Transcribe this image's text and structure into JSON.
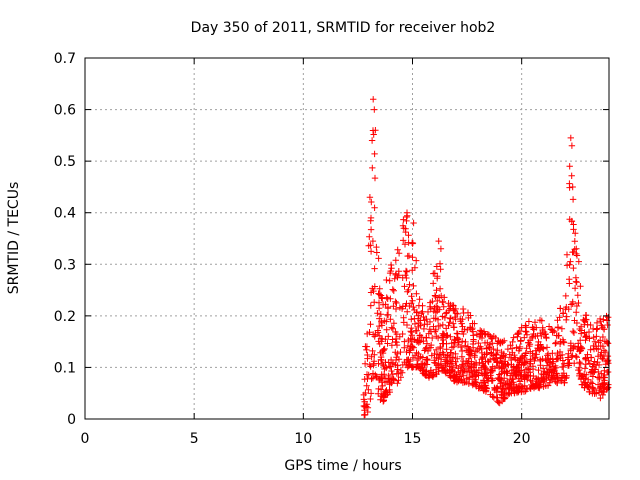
{
  "chart_data": {
    "type": "scatter",
    "title": "Day 350 of 2011, SRMTID for receiver hob2",
    "xlabel": "GPS time / hours",
    "ylabel": "SRMTID / TECUs",
    "xlim": [
      0,
      24
    ],
    "ylim": [
      0,
      0.7
    ],
    "x_ticks": [
      0,
      5,
      10,
      15,
      20
    ],
    "x_tick_labels": [
      "0",
      "5",
      "10",
      "15",
      "20"
    ],
    "y_ticks": [
      0,
      0.1,
      0.2,
      0.3,
      0.4,
      0.5,
      0.6,
      0.7
    ],
    "y_tick_labels": [
      "0",
      "0.1",
      "0.2",
      "0.3",
      "0.4",
      "0.5",
      "0.6",
      "0.7"
    ],
    "grid": true,
    "marker": "+",
    "color": "#ff0000",
    "point_count_approx": 1500,
    "series": [
      {
        "name": "SRMTID",
        "description": "Dense scatter of SRMTID values; no data before ~12.7 h, sharp onset near 12.8-13.3 h with peaks to ~0.62, secondary peak ~0.40 near 14.7 h, ~0.34 near 16.2 h, broad band 0.05-0.20 from 16 to 22 h, peak ~0.54 near 22.3 h, then 0.05-0.20 to 24 h.",
        "profile": [
          {
            "x": 12.75,
            "low": 0.0,
            "high": 0.02
          },
          {
            "x": 12.85,
            "low": 0.0,
            "high": 0.15
          },
          {
            "x": 13.0,
            "low": 0.02,
            "high": 0.35
          },
          {
            "x": 13.15,
            "low": 0.05,
            "high": 0.54
          },
          {
            "x": 13.25,
            "low": 0.1,
            "high": 0.62
          },
          {
            "x": 13.4,
            "low": 0.05,
            "high": 0.35
          },
          {
            "x": 13.6,
            "low": 0.03,
            "high": 0.24
          },
          {
            "x": 13.9,
            "low": 0.05,
            "high": 0.3
          },
          {
            "x": 14.2,
            "low": 0.06,
            "high": 0.3
          },
          {
            "x": 14.5,
            "low": 0.08,
            "high": 0.38
          },
          {
            "x": 14.75,
            "low": 0.1,
            "high": 0.4
          },
          {
            "x": 15.0,
            "low": 0.1,
            "high": 0.37
          },
          {
            "x": 15.3,
            "low": 0.1,
            "high": 0.26
          },
          {
            "x": 15.6,
            "low": 0.08,
            "high": 0.2
          },
          {
            "x": 15.9,
            "low": 0.08,
            "high": 0.27
          },
          {
            "x": 16.2,
            "low": 0.09,
            "high": 0.34
          },
          {
            "x": 16.5,
            "low": 0.09,
            "high": 0.24
          },
          {
            "x": 17.0,
            "low": 0.07,
            "high": 0.22
          },
          {
            "x": 17.5,
            "low": 0.07,
            "high": 0.21
          },
          {
            "x": 18.0,
            "low": 0.06,
            "high": 0.18
          },
          {
            "x": 18.5,
            "low": 0.05,
            "high": 0.17
          },
          {
            "x": 19.0,
            "low": 0.03,
            "high": 0.16
          },
          {
            "x": 19.5,
            "low": 0.05,
            "high": 0.15
          },
          {
            "x": 20.0,
            "low": 0.05,
            "high": 0.18
          },
          {
            "x": 20.5,
            "low": 0.06,
            "high": 0.2
          },
          {
            "x": 21.0,
            "low": 0.06,
            "high": 0.19
          },
          {
            "x": 21.5,
            "low": 0.07,
            "high": 0.17
          },
          {
            "x": 22.0,
            "low": 0.07,
            "high": 0.28
          },
          {
            "x": 22.25,
            "low": 0.12,
            "high": 0.54
          },
          {
            "x": 22.5,
            "low": 0.1,
            "high": 0.36
          },
          {
            "x": 22.8,
            "low": 0.06,
            "high": 0.22
          },
          {
            "x": 23.2,
            "low": 0.05,
            "high": 0.2
          },
          {
            "x": 23.6,
            "low": 0.04,
            "high": 0.2
          },
          {
            "x": 24.0,
            "low": 0.06,
            "high": 0.2
          }
        ],
        "peaks": [
          {
            "x": 13.2,
            "y": 0.62
          },
          {
            "x": 13.25,
            "y": 0.6
          },
          {
            "x": 13.15,
            "y": 0.54
          },
          {
            "x": 13.3,
            "y": 0.56
          },
          {
            "x": 14.75,
            "y": 0.4
          },
          {
            "x": 14.6,
            "y": 0.37
          },
          {
            "x": 15.05,
            "y": 0.38
          },
          {
            "x": 16.2,
            "y": 0.345
          },
          {
            "x": 16.3,
            "y": 0.33
          },
          {
            "x": 22.25,
            "y": 0.545
          },
          {
            "x": 22.3,
            "y": 0.53
          },
          {
            "x": 22.2,
            "y": 0.49
          },
          {
            "x": 22.45,
            "y": 0.36
          },
          {
            "x": 22.5,
            "y": 0.33
          },
          {
            "x": 13.05,
            "y": 0.43
          },
          {
            "x": 13.1,
            "y": 0.39
          }
        ]
      }
    ]
  }
}
